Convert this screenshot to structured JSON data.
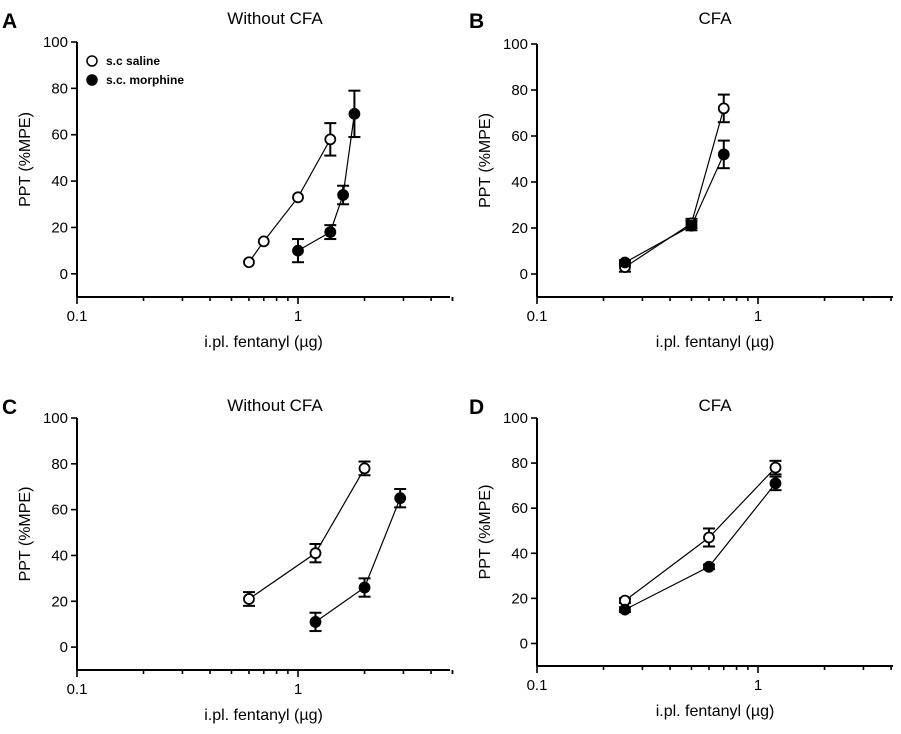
{
  "chart_data": [
    {
      "type": "scatter",
      "panel": "A",
      "title": "Without CFA",
      "xlabel": "i.pl. fentanyl (µg)",
      "ylabel": "PPT (%MPE)",
      "x_scale": "log",
      "xlim": [
        0.1,
        5
      ],
      "ylim": [
        -10,
        100
      ],
      "x_ticks": [
        0.1,
        1
      ],
      "x_tick_labels": [
        "0.1",
        "1"
      ],
      "y_ticks": [
        0,
        20,
        40,
        60,
        80,
        100
      ],
      "y_tick_labels": [
        "0",
        "20",
        "40",
        "60",
        "80",
        "100"
      ],
      "legend": {
        "placement": "top-left",
        "entries": [
          {
            "label": "s.c  saline",
            "marker": "open-circle"
          },
          {
            "label": "s.c. morphine",
            "marker": "filled-circle"
          }
        ]
      },
      "series": [
        {
          "marker": "open",
          "points": [
            {
              "x": 0.6,
              "y": 5,
              "err": 0
            },
            {
              "x": 0.7,
              "y": 14,
              "err": 0
            },
            {
              "x": 1.0,
              "y": 33,
              "err": 0
            },
            {
              "x": 1.4,
              "y": 58,
              "err": 7
            }
          ]
        },
        {
          "marker": "filled",
          "points": [
            {
              "x": 1.0,
              "y": 10,
              "err": 5
            },
            {
              "x": 1.4,
              "y": 18,
              "err": 3
            },
            {
              "x": 1.6,
              "y": 34,
              "err": 4
            },
            {
              "x": 1.8,
              "y": 69,
              "err": 10
            }
          ]
        }
      ]
    },
    {
      "type": "scatter",
      "panel": "B",
      "title": "CFA",
      "xlabel": "i.pl. fentanyl (µg)",
      "ylabel": "PPT (%MPE)",
      "x_scale": "log",
      "xlim": [
        0.1,
        5
      ],
      "ylim": [
        -10,
        100
      ],
      "x_ticks": [
        0.1,
        1
      ],
      "x_tick_labels": [
        "0.1",
        "1"
      ],
      "y_ticks": [
        0,
        20,
        40,
        60,
        80,
        100
      ],
      "y_tick_labels": [
        "0",
        "20",
        "40",
        "60",
        "80",
        "100"
      ],
      "series": [
        {
          "marker": "open",
          "points": [
            {
              "x": 0.25,
              "y": 3,
              "err": 2
            },
            {
              "x": 0.5,
              "y": 22,
              "err": 2
            },
            {
              "x": 0.7,
              "y": 72,
              "err": 6
            }
          ]
        },
        {
          "marker": "filled",
          "points": [
            {
              "x": 0.25,
              "y": 5,
              "err": 1
            },
            {
              "x": 0.5,
              "y": 21,
              "err": 2
            },
            {
              "x": 0.7,
              "y": 52,
              "err": 6
            }
          ]
        }
      ]
    },
    {
      "type": "scatter",
      "panel": "C",
      "title": "Without CFA",
      "xlabel": "i.pl. fentanyl (µg)",
      "ylabel": "PPT (%MPE)",
      "x_scale": "log",
      "xlim": [
        0.1,
        5
      ],
      "ylim": [
        -10,
        100
      ],
      "x_ticks": [
        0.1,
        1
      ],
      "x_tick_labels": [
        "0.1",
        "1"
      ],
      "y_ticks": [
        0,
        20,
        40,
        60,
        80,
        100
      ],
      "y_tick_labels": [
        "0",
        "20",
        "40",
        "60",
        "80",
        "100"
      ],
      "series": [
        {
          "marker": "open",
          "points": [
            {
              "x": 0.6,
              "y": 21,
              "err": 3
            },
            {
              "x": 1.2,
              "y": 41,
              "err": 4
            },
            {
              "x": 2.0,
              "y": 78,
              "err": 3
            }
          ]
        },
        {
          "marker": "filled",
          "points": [
            {
              "x": 1.2,
              "y": 11,
              "err": 4
            },
            {
              "x": 2.0,
              "y": 26,
              "err": 4
            },
            {
              "x": 2.9,
              "y": 65,
              "err": 4
            }
          ]
        }
      ]
    },
    {
      "type": "scatter",
      "panel": "D",
      "title": "CFA",
      "xlabel": "i.pl. fentanyl (µg)",
      "ylabel": "PPT (%MPE)",
      "x_scale": "log",
      "xlim": [
        0.1,
        5
      ],
      "ylim": [
        -10,
        100
      ],
      "x_ticks": [
        0.1,
        1
      ],
      "x_tick_labels": [
        "0.1",
        "1"
      ],
      "y_ticks": [
        0,
        20,
        40,
        60,
        80,
        100
      ],
      "y_tick_labels": [
        "0",
        "20",
        "40",
        "60",
        "80",
        "100"
      ],
      "series": [
        {
          "marker": "open",
          "points": [
            {
              "x": 0.25,
              "y": 19,
              "err": 1
            },
            {
              "x": 0.6,
              "y": 47,
              "err": 4
            },
            {
              "x": 1.2,
              "y": 78,
              "err": 3
            }
          ]
        },
        {
          "marker": "filled",
          "points": [
            {
              "x": 0.25,
              "y": 15,
              "err": 1
            },
            {
              "x": 0.6,
              "y": 34,
              "err": 1
            },
            {
              "x": 1.2,
              "y": 71,
              "err": 3
            }
          ]
        }
      ]
    }
  ]
}
